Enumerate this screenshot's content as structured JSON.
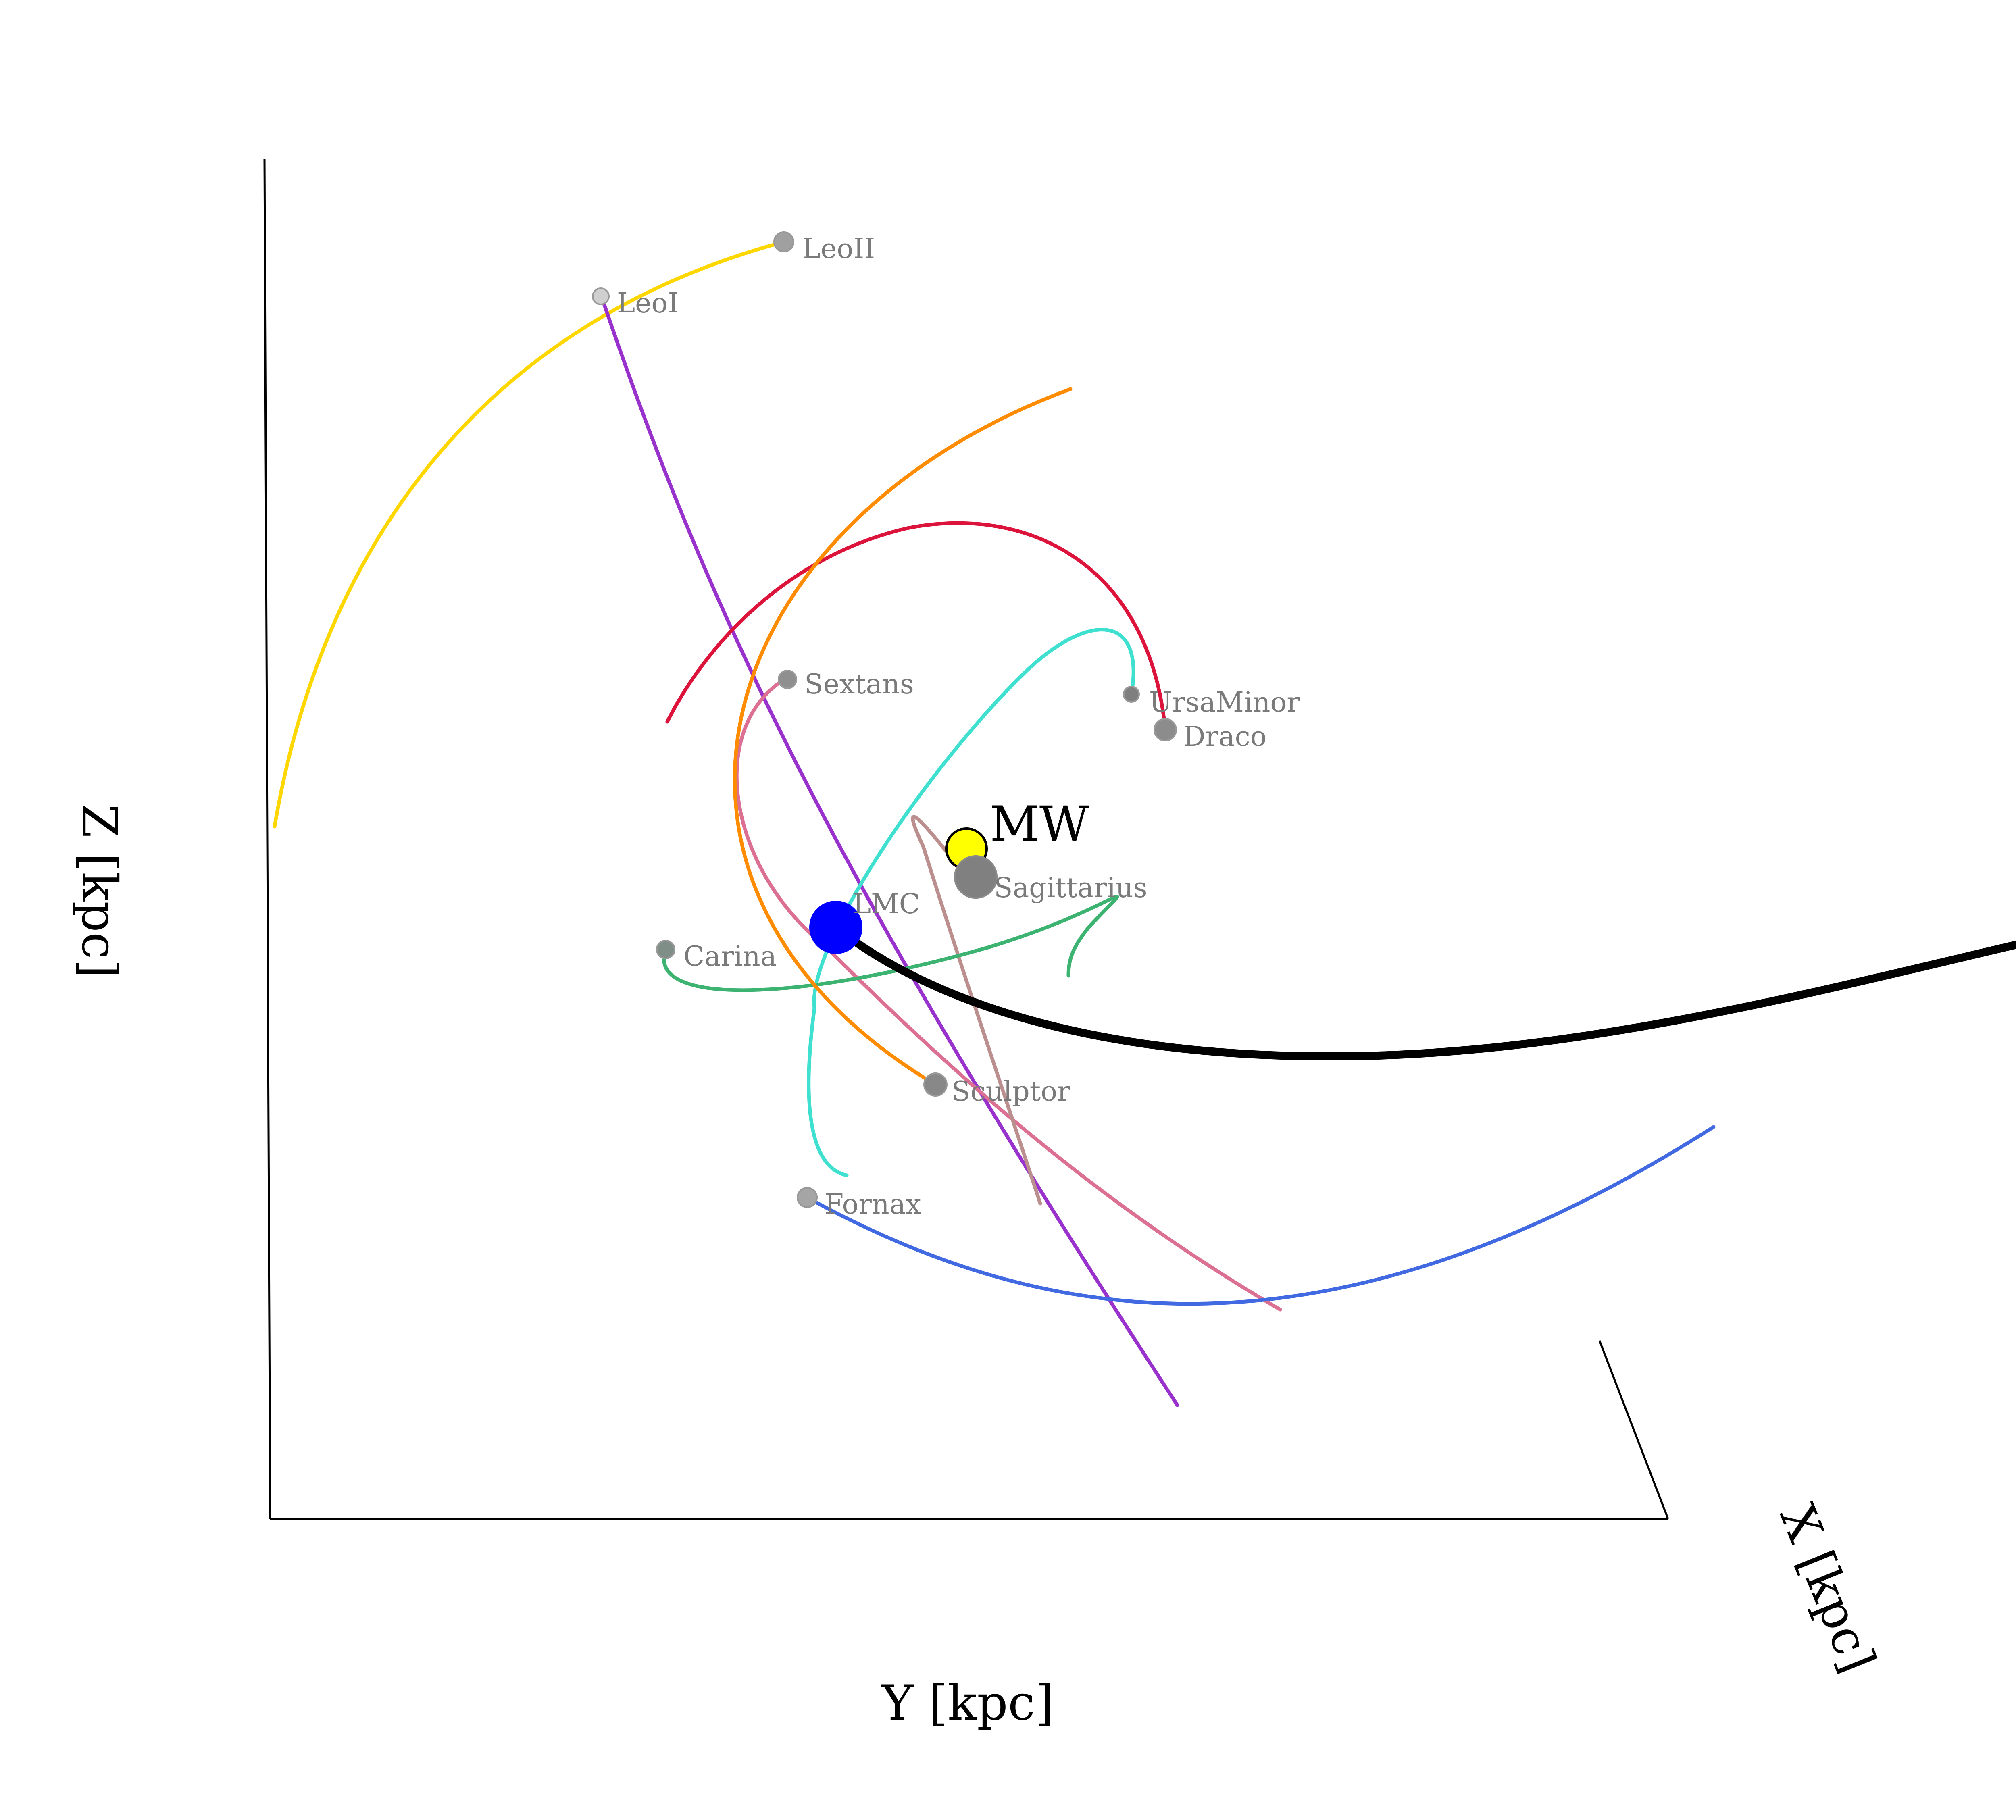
{
  "chart_data": {
    "type": "line",
    "title": "",
    "projection": "3d",
    "xlabel": "X [kpc]",
    "ylabel": "Y [kpc]",
    "zlabel": "Z [kpc]",
    "grid": false,
    "legend": "none",
    "hosts": [
      {
        "name": "MW",
        "color": "#ffff00"
      },
      {
        "name": "LMC",
        "color": "#0000ff"
      }
    ],
    "lmc_orbit_color": "#000000",
    "satellites": [
      {
        "name": "LeoII",
        "color": "#ffd700"
      },
      {
        "name": "LeoI",
        "color": "#9932cc"
      },
      {
        "name": "Sextans",
        "color": "#db7093"
      },
      {
        "name": "UrsaMinor",
        "color": "#40e0d0"
      },
      {
        "name": "Draco",
        "color": "#dc143c"
      },
      {
        "name": "Sagittarius",
        "color": "#bc8f8f"
      },
      {
        "name": "Carina",
        "color": "#3cb371"
      },
      {
        "name": "Sculptor",
        "color": "#ff8c00"
      },
      {
        "name": "Fornax",
        "color": "#4169e1"
      }
    ]
  }
}
